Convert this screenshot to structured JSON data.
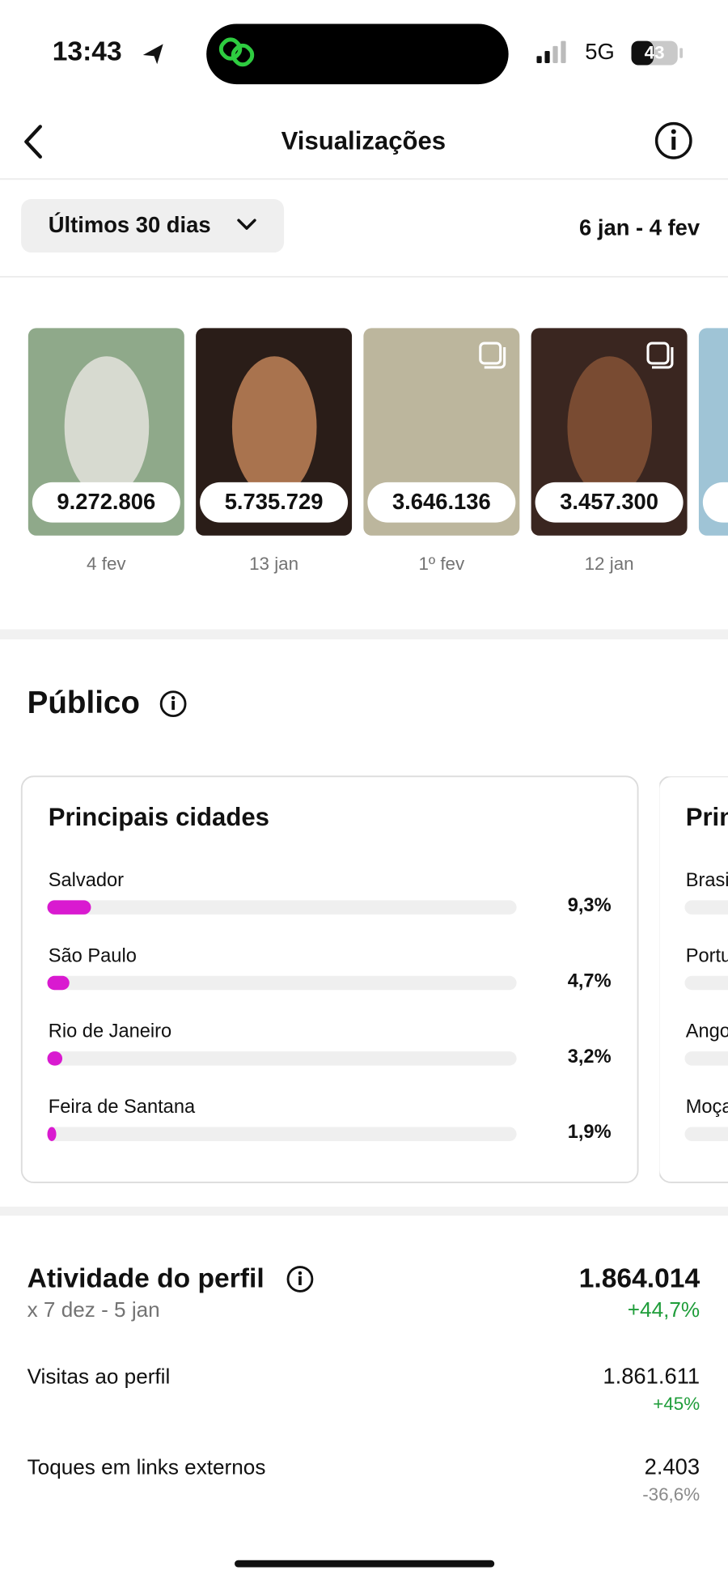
{
  "status_bar": {
    "time": "13:43",
    "network": "5G",
    "battery": "43"
  },
  "header": {
    "title": "Visualizações"
  },
  "filter": {
    "period": "Últimos 30 dias",
    "date_range": "6 jan - 4 fev"
  },
  "posts": [
    {
      "views": "9.272.806",
      "date": "4 fev"
    },
    {
      "views": "5.735.729",
      "date": "13 jan"
    },
    {
      "views": "3.646.136",
      "date": "1º fev"
    },
    {
      "views": "3.457.300",
      "date": "12 jan"
    }
  ],
  "audience": {
    "title": "Público",
    "cards": [
      {
        "title": "Principais cidades",
        "xlim": [
          0,
          100
        ],
        "rows": [
          {
            "name": "Salvador",
            "value": 9.3,
            "label": "9,3%"
          },
          {
            "name": "São Paulo",
            "value": 4.7,
            "label": "4,7%"
          },
          {
            "name": "Rio de Janeiro",
            "value": 3.2,
            "label": "3,2%"
          },
          {
            "name": "Feira de Santana",
            "value": 1.9,
            "label": "1,9%"
          }
        ]
      },
      {
        "title": "Principais países",
        "rows": [
          {
            "name": "Brasil"
          },
          {
            "name": "Portugal"
          },
          {
            "name": "Angola"
          },
          {
            "name": "Moçambique"
          }
        ]
      }
    ]
  },
  "activity": {
    "title": "Atividade do perfil",
    "total": "1.864.014",
    "comparison": "x 7 dez - 5 jan",
    "change": "+44,7%",
    "rows": [
      {
        "name": "Visitas ao perfil",
        "value": "1.861.611",
        "change": "+45%",
        "trend": "up"
      },
      {
        "name": "Toques em links externos",
        "value": "2.403",
        "change": "-36,6%",
        "trend": "down"
      }
    ]
  }
}
